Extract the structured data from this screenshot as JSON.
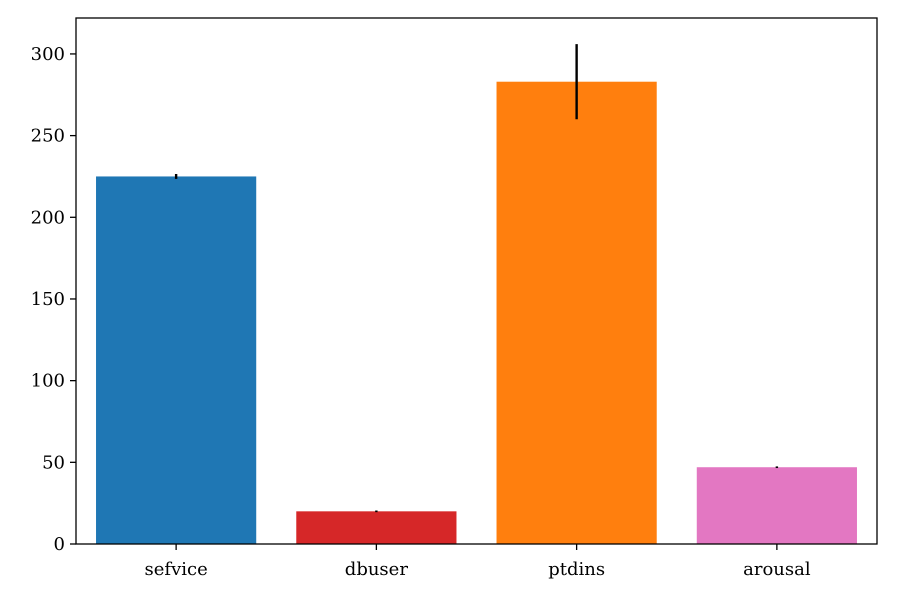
{
  "chart_data": {
    "type": "bar",
    "categories": [
      "sefvice",
      "dbuser",
      "ptdins",
      "arousal"
    ],
    "values": [
      225,
      20,
      283,
      47
    ],
    "errors": [
      1.5,
      0.5,
      23,
      0.5
    ],
    "colors": [
      "#1f77b4",
      "#d62728",
      "#ff7f0e",
      "#e377c2"
    ],
    "title": "",
    "xlabel": "",
    "ylabel": "",
    "ylim": [
      0,
      322
    ],
    "yticks": [
      0,
      50,
      100,
      150,
      200,
      250,
      300
    ],
    "grid": false,
    "legend": "none"
  }
}
